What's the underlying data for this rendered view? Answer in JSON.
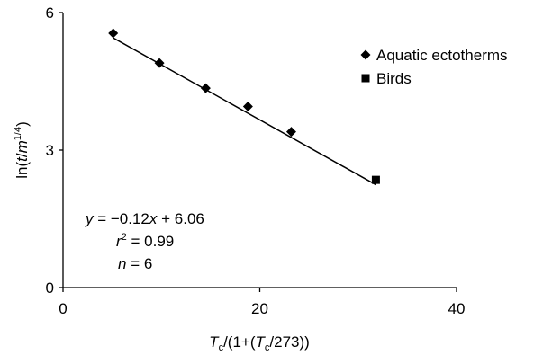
{
  "chart_data": {
    "type": "scatter",
    "xlim": [
      0,
      40
    ],
    "ylim": [
      0,
      6
    ],
    "xticks": [
      0,
      20,
      40
    ],
    "yticks": [
      0,
      3,
      6
    ],
    "xtick_labels": [
      "0",
      "20",
      "40"
    ],
    "ytick_labels": [
      "0",
      "3",
      "6"
    ],
    "xlabel": {
      "t1": "T",
      "s1": "c",
      "t2": "/(1+(",
      "t3": "T",
      "s2": "c",
      "t4": "/273))"
    },
    "ylabel": {
      "t1": "ln(",
      "t2": "t",
      "t3": "/",
      "t4": "m",
      "sup": "1/4",
      "t5": ")"
    },
    "legend_position": "top-right",
    "series": [
      {
        "name": "Aquatic ectotherms",
        "marker": "diamond",
        "x": [
          5.1,
          9.8,
          14.5,
          18.8,
          23.2
        ],
        "y": [
          5.55,
          4.9,
          4.35,
          3.95,
          3.4
        ]
      },
      {
        "name": "Birds",
        "marker": "square",
        "x": [
          31.8
        ],
        "y": [
          2.35
        ]
      }
    ],
    "fit_line": {
      "slope": -0.12,
      "intercept": 6.06,
      "x_range": [
        5.1,
        31.8
      ]
    },
    "annotations": {
      "equation": {
        "var": "y",
        "rest": " = −0.12",
        "var2": "x",
        "rest2": " + 6.06"
      },
      "r2": {
        "var": "r",
        "sup": "2",
        "rest": " = 0.99"
      },
      "n": {
        "var": "n",
        "rest": " = 6"
      }
    }
  }
}
